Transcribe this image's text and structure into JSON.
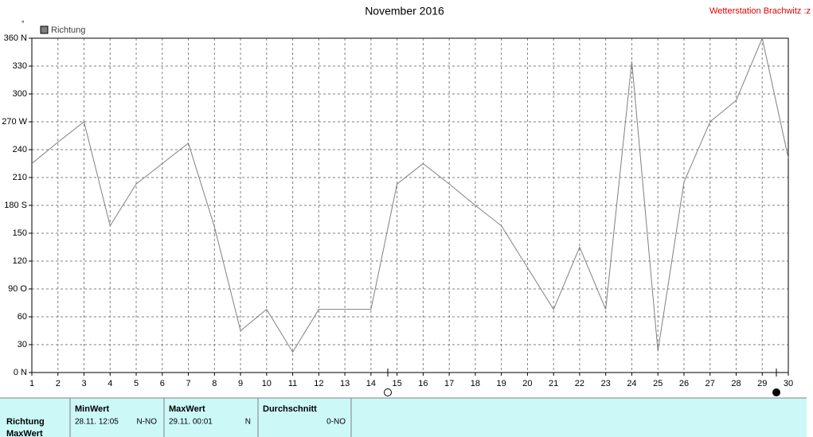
{
  "chart_data": {
    "type": "line",
    "title": "November 2016",
    "station": "Wetterstation Brachwitz :z",
    "y_unit": "°",
    "x": [
      1,
      2,
      3,
      4,
      5,
      6,
      7,
      8,
      9,
      10,
      11,
      12,
      13,
      14,
      15,
      16,
      17,
      18,
      19,
      20,
      21,
      22,
      23,
      24,
      25,
      26,
      27,
      28,
      29,
      30
    ],
    "xlim": [
      1,
      30
    ],
    "xticks": [
      1,
      2,
      3,
      4,
      5,
      6,
      7,
      8,
      9,
      10,
      11,
      12,
      13,
      14,
      15,
      16,
      17,
      18,
      19,
      20,
      21,
      22,
      23,
      24,
      25,
      26,
      27,
      28,
      29,
      30
    ],
    "ylim": [
      0,
      360
    ],
    "yticks": [
      {
        "value": 0,
        "label": "0  N"
      },
      30,
      60,
      {
        "value": 90,
        "label": "90  O"
      },
      120,
      150,
      {
        "value": 180,
        "label": "180 S"
      },
      210,
      240,
      {
        "value": 270,
        "label": "270 W"
      },
      300,
      330,
      {
        "value": 360,
        "label": "360 N"
      }
    ],
    "grid": true,
    "legend": "top-left",
    "series": [
      {
        "name": "Richtung",
        "color": "#808080",
        "values": [
          225,
          248,
          270,
          158,
          203,
          225,
          247,
          157,
          45,
          68,
          22,
          68,
          68,
          68,
          203,
          225,
          203,
          180,
          158,
          113,
          68,
          135,
          68,
          335,
          23,
          205,
          270,
          293,
          360,
          231
        ]
      }
    ]
  },
  "table": {
    "headers": [
      "MinWert",
      "MaxWert",
      "Durchschnitt"
    ],
    "rows": [
      [
        "Richtung",
        "28.11.  12:05",
        "N-NO",
        "29.11.  00:01",
        "N",
        "0-NO"
      ],
      [
        "MaxWert"
      ]
    ]
  }
}
